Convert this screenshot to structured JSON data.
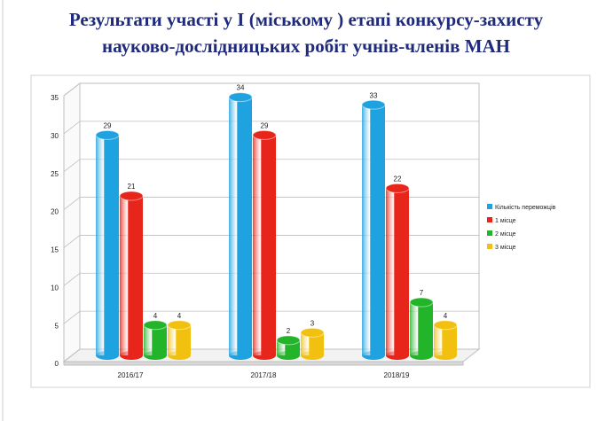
{
  "chart_data": {
    "type": "bar3d",
    "title": [
      "Результати участі у І (міському ) етапі конкурсу-захисту",
      "науково-дослідницьких робіт учнів-членів  МАН"
    ],
    "categories": [
      "2016/17",
      "2017/18",
      "2018/19"
    ],
    "series": [
      {
        "name": "Кількість переможців",
        "color": "#1fa3e0",
        "values": [
          29,
          34,
          33
        ]
      },
      {
        "name": "1 місце",
        "color": "#e8251a",
        "values": [
          21,
          29,
          22
        ]
      },
      {
        "name": "2 місце",
        "color": "#22b52a",
        "values": [
          4,
          2,
          7
        ]
      },
      {
        "name": "3 місце",
        "color": "#f2c10f",
        "values": [
          4,
          3,
          4
        ]
      }
    ],
    "ylim": [
      0,
      35
    ],
    "yticks": [
      0,
      5,
      10,
      15,
      20,
      25,
      30,
      35
    ],
    "grid": true,
    "legend": "right"
  }
}
